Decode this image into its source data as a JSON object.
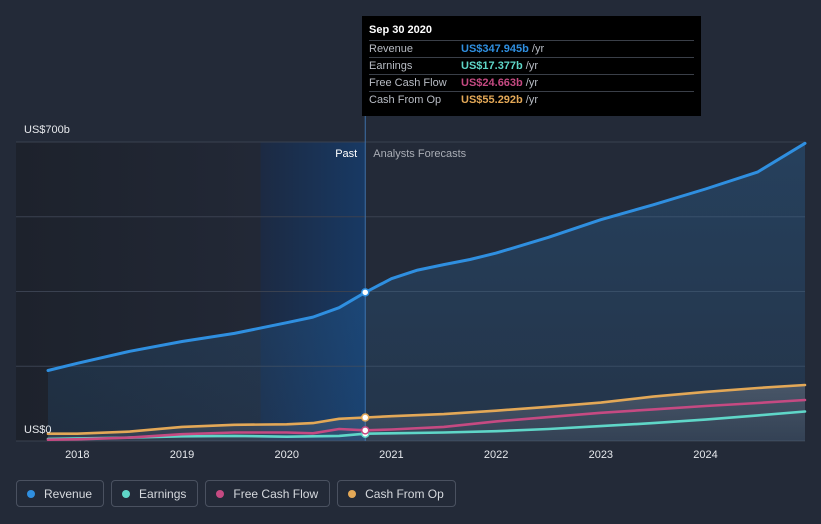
{
  "colors": {
    "revenue": "#2f8fe0",
    "earnings": "#5fd6c8",
    "fcf": "#c54a82",
    "cfo": "#e3a857",
    "background": "#232a38"
  },
  "tooltip": {
    "date": "Sep 30 2020",
    "rows": [
      {
        "label": "Revenue",
        "value": "US$347.945b",
        "unit": "/yr",
        "color": "#2f8fe0"
      },
      {
        "label": "Earnings",
        "value": "US$17.377b",
        "unit": "/yr",
        "color": "#5fd6c8"
      },
      {
        "label": "Free Cash Flow",
        "value": "US$24.663b",
        "unit": "/yr",
        "color": "#c54a82"
      },
      {
        "label": "Cash From Op",
        "value": "US$55.292b",
        "unit": "/yr",
        "color": "#e3a857"
      }
    ]
  },
  "legend": [
    {
      "label": "Revenue",
      "color": "#2f8fe0"
    },
    {
      "label": "Earnings",
      "color": "#5fd6c8"
    },
    {
      "label": "Free Cash Flow",
      "color": "#c54a82"
    },
    {
      "label": "Cash From Op",
      "color": "#e3a857"
    }
  ],
  "chart_data": {
    "type": "line",
    "ylabel_top": "US$700b",
    "ylabel_bottom": "US$0",
    "past_label": "Past",
    "forecast_label": "Analysts Forecasts",
    "ylim": [
      0,
      700
    ],
    "xlim": [
      2017.7,
      2024.95
    ],
    "divider_x": 2020.75,
    "highlight_start_x": 2019.75,
    "x_ticks": [
      {
        "label": "2018",
        "x": 2018.0
      },
      {
        "label": "2019",
        "x": 2019.0
      },
      {
        "label": "2020",
        "x": 2020.0
      },
      {
        "label": "2021",
        "x": 2021.0
      },
      {
        "label": "2022",
        "x": 2022.0
      },
      {
        "label": "2023",
        "x": 2023.0
      },
      {
        "label": "2024",
        "x": 2024.0
      }
    ],
    "series": [
      {
        "name": "Revenue",
        "key": "revenue",
        "x": [
          2017.72,
          2018.0,
          2018.5,
          2019.0,
          2019.5,
          2020.0,
          2020.25,
          2020.5,
          2020.75,
          2021.0,
          2021.25,
          2021.5,
          2021.75,
          2022.0,
          2022.5,
          2023.0,
          2023.5,
          2024.0,
          2024.5,
          2024.95
        ],
        "y": [
          165,
          182,
          210,
          233,
          252,
          277,
          290,
          312,
          348,
          380,
          400,
          413,
          425,
          440,
          477,
          518,
          553,
          590,
          630,
          697
        ]
      },
      {
        "name": "Earnings",
        "key": "earnings",
        "x": [
          2017.72,
          2018.0,
          2018.5,
          2019.0,
          2019.5,
          2020.0,
          2020.25,
          2020.5,
          2020.75,
          2021.0,
          2021.5,
          2022.0,
          2022.5,
          2023.0,
          2023.5,
          2024.0,
          2024.5,
          2024.95
        ],
        "y": [
          5,
          6,
          8,
          11,
          12,
          10,
          11,
          12,
          17,
          18,
          20,
          23,
          28,
          35,
          42,
          50,
          60,
          69
        ]
      },
      {
        "name": "Free Cash Flow",
        "key": "fcf",
        "x": [
          2017.72,
          2018.0,
          2018.5,
          2019.0,
          2019.5,
          2020.0,
          2020.25,
          2020.5,
          2020.75,
          2021.0,
          2021.5,
          2022.0,
          2022.5,
          2023.0,
          2023.5,
          2024.0,
          2024.5,
          2024.95
        ],
        "y": [
          3,
          4,
          8,
          16,
          20,
          20,
          18,
          28,
          25,
          27,
          33,
          46,
          56,
          66,
          74,
          82,
          89,
          96
        ]
      },
      {
        "name": "Cash From Op",
        "key": "cfo",
        "x": [
          2017.72,
          2018.0,
          2018.5,
          2019.0,
          2019.5,
          2020.0,
          2020.25,
          2020.5,
          2020.75,
          2021.0,
          2021.5,
          2022.0,
          2022.5,
          2023.0,
          2023.5,
          2024.0,
          2024.5,
          2024.95
        ],
        "y": [
          17,
          17,
          22,
          33,
          38,
          39,
          42,
          52,
          55,
          58,
          63,
          71,
          80,
          90,
          104,
          115,
          124,
          131
        ]
      }
    ],
    "marker_x": 2020.75
  }
}
